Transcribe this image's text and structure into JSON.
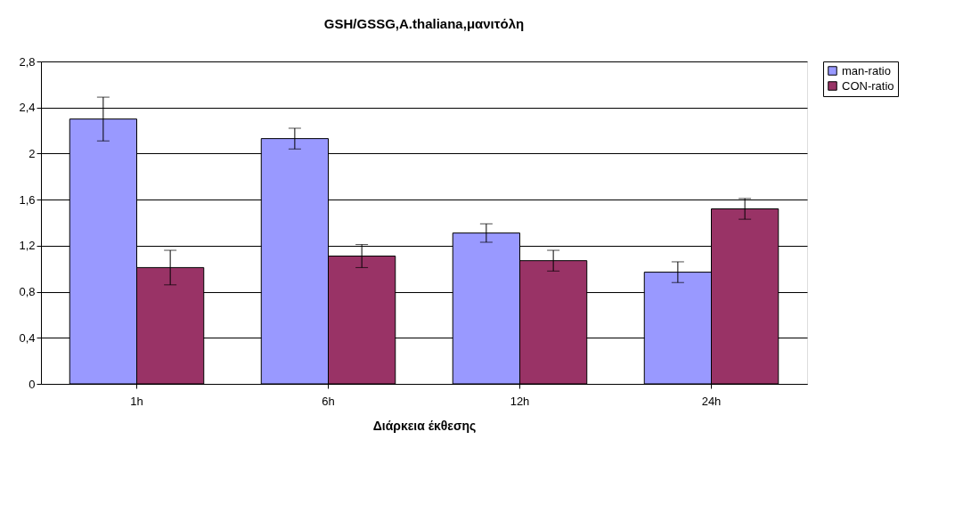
{
  "chart_data": {
    "type": "bar",
    "title": "GSH/GSSG,A.thaliana,μανιτόλη",
    "xlabel": "Διάρκεια έκθεσης",
    "categories": [
      "1h",
      "6h",
      "12h",
      "24h"
    ],
    "series": [
      {
        "name": "man-ratio",
        "color": "#9999ff",
        "values": [
          2.3,
          2.13,
          1.31,
          0.97
        ],
        "errors": [
          0.19,
          0.09,
          0.08,
          0.09
        ]
      },
      {
        "name": "CON-ratio",
        "color": "#993366",
        "values": [
          1.01,
          1.11,
          1.07,
          1.52
        ],
        "errors": [
          0.15,
          0.1,
          0.09,
          0.09
        ]
      }
    ],
    "ylim": [
      0,
      2.8
    ],
    "yticks": [
      0,
      {
        "value": 0.4,
        "label": "0,4"
      },
      {
        "value": 0.8,
        "label": "0,8"
      },
      {
        "value": 1.2,
        "label": "1,2"
      },
      {
        "value": 1.6,
        "label": "1,6"
      },
      2,
      {
        "value": 2.4,
        "label": "2,4"
      },
      {
        "value": 2.8,
        "label": "2,8"
      }
    ],
    "grid": "y",
    "legend": "right"
  }
}
